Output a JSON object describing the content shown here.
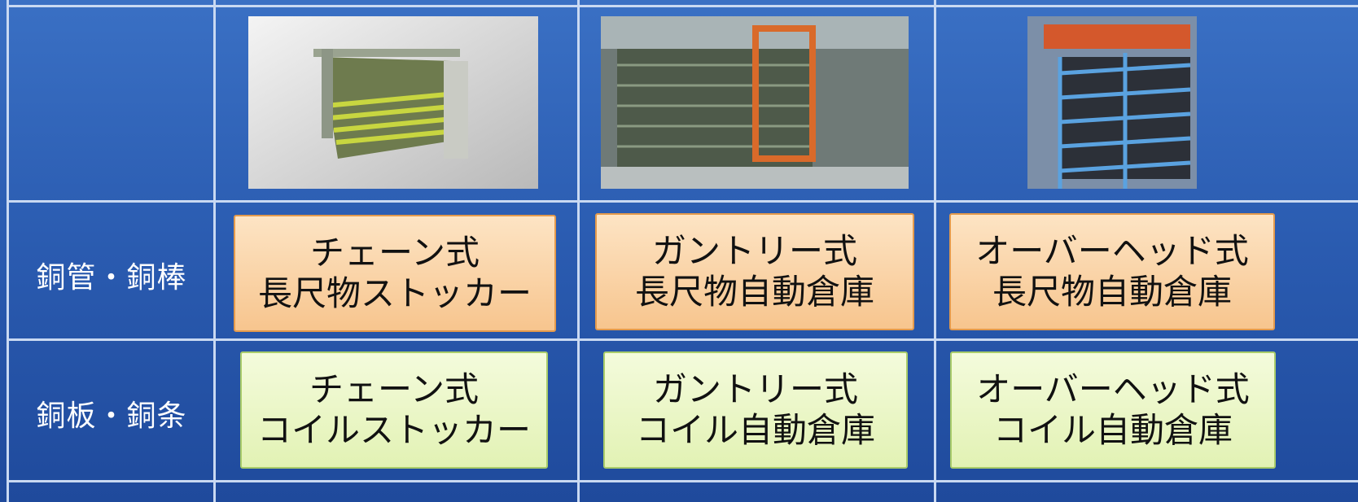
{
  "table": {
    "rows": [
      {
        "label": "銅管・銅棒",
        "cells": [
          [
            "チェーン式",
            "長尺物ストッカー"
          ],
          [
            "ガントリー式",
            "長尺物自動倉庫"
          ],
          [
            "オーバーヘッド式",
            "長尺物自動倉庫"
          ]
        ]
      },
      {
        "label": "銅板・銅条",
        "cells": [
          [
            "チェーン式",
            "コイルストッカー"
          ],
          [
            "ガントリー式",
            "コイル自動倉庫"
          ],
          [
            "オーバーヘッド式",
            "コイル自動倉庫"
          ]
        ]
      }
    ]
  }
}
